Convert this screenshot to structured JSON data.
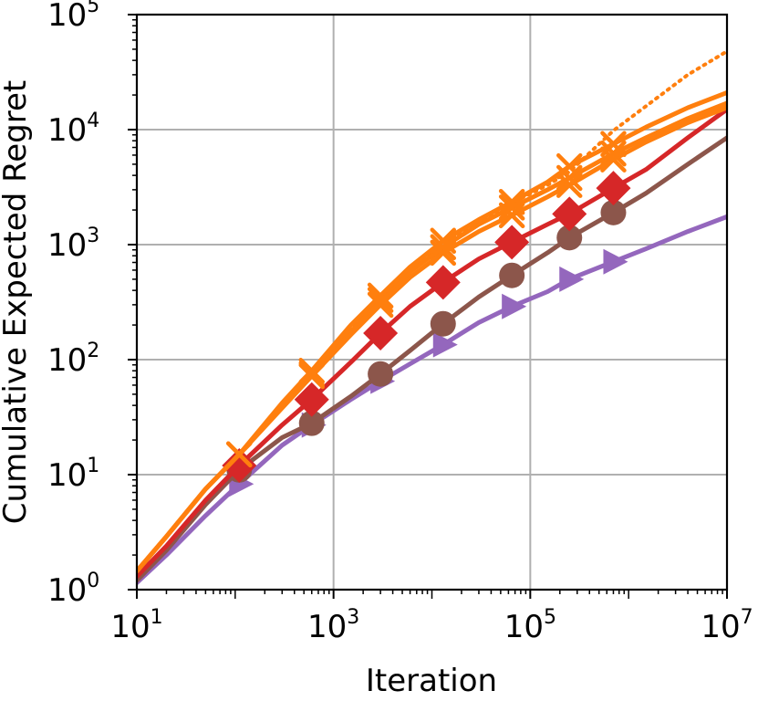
{
  "chart_data": {
    "type": "line",
    "title": "",
    "xlabel": "Iteration",
    "ylabel": "Cumulative Expected Regret",
    "x_scale": "log",
    "y_scale": "log",
    "xlim": [
      10,
      10000000
    ],
    "ylim": [
      1,
      100000
    ],
    "grid": true,
    "x_ticks": [
      {
        "base": "10",
        "exp": "1",
        "value": 10
      },
      {
        "base": "10",
        "exp": "3",
        "value": 1000
      },
      {
        "base": "10",
        "exp": "5",
        "value": 100000
      },
      {
        "base": "10",
        "exp": "7",
        "value": 10000000
      }
    ],
    "y_ticks": [
      {
        "base": "10",
        "exp": "0",
        "value": 1
      },
      {
        "base": "10",
        "exp": "1",
        "value": 10
      },
      {
        "base": "10",
        "exp": "2",
        "value": 100
      },
      {
        "base": "10",
        "exp": "3",
        "value": 1000
      },
      {
        "base": "10",
        "exp": "4",
        "value": 10000
      },
      {
        "base": "10",
        "exp": "5",
        "value": 100000
      }
    ],
    "series": [
      {
        "color": "#9467bd",
        "marker": "triangle-right",
        "style": "solid",
        "x": [
          10,
          20,
          50,
          110,
          300,
          600,
          1500,
          3000,
          6000,
          13000,
          30000,
          65000,
          150000,
          250000,
          700000,
          1500000,
          4000000,
          10000000
        ],
        "y": [
          1.15,
          2.0,
          4.4,
          8.3,
          18,
          27,
          45,
          65,
          92,
          135,
          210,
          290,
          390,
          500,
          710,
          920,
          1300,
          1750
        ],
        "markers": [
          [
            110,
            8.3
          ],
          [
            600,
            27
          ],
          [
            3000,
            65
          ],
          [
            13000,
            135
          ],
          [
            65000,
            290
          ],
          [
            250000,
            500
          ],
          [
            700000,
            710
          ]
        ]
      },
      {
        "color": "#8c564b",
        "marker": "circle",
        "style": "solid",
        "x": [
          10,
          20,
          50,
          110,
          300,
          600,
          1500,
          3000,
          6000,
          13000,
          30000,
          65000,
          150000,
          250000,
          700000,
          1500000,
          4000000,
          10000000
        ],
        "y": [
          1.2,
          2.2,
          5.5,
          11,
          21,
          28,
          48,
          75,
          120,
          205,
          350,
          540,
          850,
          1150,
          1900,
          2800,
          5000,
          8500
        ],
        "markers": [
          [
            110,
            11
          ],
          [
            600,
            28
          ],
          [
            3000,
            75
          ],
          [
            13000,
            205
          ],
          [
            65000,
            540
          ],
          [
            250000,
            1150
          ],
          [
            700000,
            1900
          ]
        ]
      },
      {
        "color": "#d62728",
        "marker": "diamond",
        "style": "solid",
        "x": [
          10,
          20,
          50,
          110,
          300,
          600,
          1500,
          3000,
          6000,
          13000,
          30000,
          65000,
          150000,
          250000,
          700000,
          1500000,
          4000000,
          10000000
        ],
        "y": [
          1.3,
          2.4,
          6.0,
          12,
          27,
          45,
          95,
          170,
          290,
          470,
          750,
          1050,
          1500,
          1850,
          3100,
          4500,
          8500,
          15000
        ],
        "markers": [
          [
            110,
            12
          ],
          [
            600,
            45
          ],
          [
            3000,
            170
          ],
          [
            13000,
            470
          ],
          [
            65000,
            1050
          ],
          [
            250000,
            1850
          ],
          [
            700000,
            3100
          ]
        ]
      },
      {
        "color": "#ff7f0e",
        "marker": "x",
        "style": "dotted",
        "x": [
          10,
          20,
          50,
          110,
          300,
          600,
          1500,
          3000,
          6000,
          13000,
          30000,
          65000,
          150000,
          250000,
          700000,
          1500000,
          4000000,
          10000000
        ],
        "y": [
          1.45,
          2.9,
          7.5,
          15,
          42,
          78,
          190,
          340,
          600,
          1000,
          1600,
          2300,
          3300,
          4300,
          9800,
          16000,
          30000,
          48000
        ],
        "markers": [
          [
            110,
            15
          ],
          [
            600,
            78
          ],
          [
            3000,
            340
          ],
          [
            13000,
            1000
          ],
          [
            65000,
            2300
          ],
          [
            250000,
            4300
          ],
          [
            700000,
            9800
          ]
        ]
      },
      {
        "color": "#ff7f0e",
        "marker": "x",
        "style": "solid",
        "x": [
          10,
          20,
          50,
          110,
          300,
          600,
          1500,
          3000,
          6000,
          13000,
          30000,
          65000,
          150000,
          250000,
          700000,
          1500000,
          4000000,
          10000000
        ],
        "y": [
          1.45,
          2.9,
          7.5,
          15,
          40,
          75,
          175,
          330,
          580,
          950,
          1500,
          2100,
          3000,
          3800,
          6200,
          8500,
          12500,
          17000
        ],
        "markers": [
          [
            110,
            15
          ],
          [
            600,
            75
          ],
          [
            3000,
            330
          ],
          [
            13000,
            950
          ],
          [
            65000,
            2100
          ],
          [
            250000,
            3800
          ],
          [
            700000,
            6200
          ]
        ]
      },
      {
        "color": "#ff7f0e",
        "marker": "x",
        "style": "solid",
        "x": [
          10,
          20,
          50,
          110,
          300,
          600,
          1500,
          3000,
          6000,
          13000,
          30000,
          65000,
          150000,
          250000,
          700000,
          1500000,
          4000000,
          10000000
        ],
        "y": [
          1.45,
          2.9,
          7.5,
          15,
          38,
          72,
          165,
          300,
          520,
          850,
          1300,
          1800,
          2600,
          3300,
          5500,
          7800,
          11500,
          15500
        ],
        "markers": [
          [
            110,
            15
          ],
          [
            600,
            72
          ],
          [
            3000,
            300
          ],
          [
            13000,
            850
          ],
          [
            65000,
            1800
          ],
          [
            250000,
            3300
          ],
          [
            700000,
            5500
          ]
        ]
      },
      {
        "color": "#ff7f0e",
        "marker": "x",
        "style": "solid",
        "x": [
          10,
          20,
          50,
          110,
          300,
          600,
          1500,
          3000,
          6000,
          13000,
          30000,
          65000,
          150000,
          250000,
          700000,
          1500000,
          4000000,
          10000000
        ],
        "y": [
          1.45,
          2.9,
          7.5,
          15,
          42,
          80,
          200,
          360,
          640,
          1080,
          1650,
          2350,
          3500,
          4800,
          7500,
          10500,
          15500,
          21000
        ],
        "markers": [
          [
            110,
            15
          ],
          [
            600,
            80
          ],
          [
            3000,
            360
          ],
          [
            13000,
            1080
          ],
          [
            65000,
            2350
          ],
          [
            250000,
            4800
          ],
          [
            700000,
            7500
          ]
        ]
      }
    ]
  }
}
